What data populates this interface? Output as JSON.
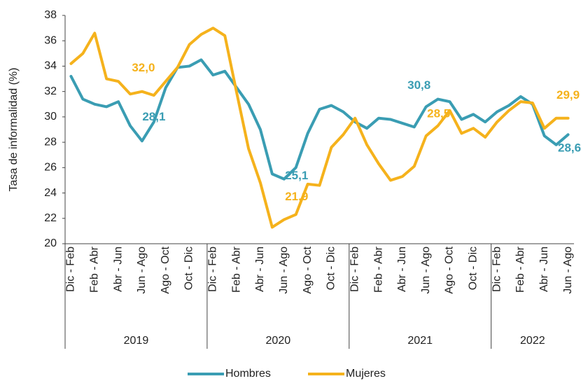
{
  "chart_data": {
    "type": "line",
    "y_label": "Tasa de informalidad (%)",
    "categories": [
      "Dic - Feb",
      null,
      "Feb - Abr",
      null,
      "Abr - Jun",
      null,
      "Jun - Ago",
      null,
      "Ago - Oct",
      null,
      "Oct - Dic",
      null,
      "Dic - Feb",
      null,
      "Feb - Abr",
      null,
      "Abr - Jun",
      null,
      "Jun - Ago",
      null,
      "Ago - Oct",
      null,
      "Oct - Dic",
      null,
      "Dic - Feb",
      null,
      "Feb - Abr",
      null,
      "Abr - Jun",
      null,
      "Jun - Ago",
      null,
      "Ago - Oct",
      null,
      "Oct - Dic",
      null,
      "Dic - Feb",
      null,
      "Feb - Abr",
      null,
      "Abr - Jun",
      null,
      "Jun - Ago"
    ],
    "years": [
      "2019",
      "2020",
      "2021",
      "2022"
    ],
    "series": [
      {
        "name": "Hombres",
        "color": "#3a9db3",
        "values": [
          33.2,
          31.4,
          31.0,
          30.8,
          31.2,
          29.3,
          28.1,
          29.6,
          32.3,
          33.9,
          34.0,
          34.5,
          33.3,
          33.6,
          32.3,
          31.0,
          29.0,
          25.5,
          25.1,
          26.0,
          28.7,
          30.6,
          30.9,
          30.4,
          29.6,
          29.1,
          29.9,
          29.8,
          29.5,
          29.2,
          30.8,
          31.4,
          31.2,
          29.8,
          30.2,
          29.6,
          30.4,
          30.9,
          31.6,
          31.0,
          28.5,
          27.8,
          28.6
        ],
        "value_labels": [
          null,
          null,
          null,
          null,
          null,
          null,
          "28,1",
          null,
          null,
          null,
          null,
          null,
          null,
          null,
          null,
          null,
          null,
          null,
          "25,1",
          null,
          null,
          null,
          null,
          null,
          null,
          null,
          null,
          null,
          null,
          null,
          "30,8",
          null,
          null,
          null,
          null,
          null,
          null,
          null,
          null,
          null,
          null,
          null,
          "28,6"
        ]
      },
      {
        "name": "Mujeres",
        "color": "#f5b21c",
        "values": [
          34.2,
          35.0,
          36.6,
          33.0,
          32.8,
          31.8,
          32.0,
          31.7,
          32.8,
          33.9,
          35.7,
          36.5,
          37.0,
          36.4,
          31.9,
          27.5,
          24.8,
          21.3,
          21.9,
          22.3,
          24.7,
          24.6,
          27.6,
          28.6,
          29.9,
          27.8,
          26.3,
          25.0,
          25.3,
          26.1,
          28.5,
          29.3,
          30.5,
          28.7,
          29.1,
          28.4,
          29.6,
          30.5,
          31.2,
          31.1,
          29.1,
          29.9,
          29.9
        ],
        "value_labels": [
          null,
          null,
          null,
          null,
          null,
          null,
          "32,0",
          null,
          null,
          null,
          null,
          null,
          null,
          null,
          null,
          null,
          null,
          null,
          "21,9",
          null,
          null,
          null,
          null,
          null,
          null,
          null,
          null,
          null,
          null,
          null,
          "28,5",
          null,
          null,
          null,
          null,
          null,
          null,
          null,
          null,
          null,
          null,
          null,
          "29,9"
        ]
      }
    ],
    "ylim": [
      20,
      38
    ],
    "yticks": [
      20,
      22,
      24,
      26,
      28,
      30,
      32,
      34,
      36,
      38
    ],
    "legend": "bottom"
  }
}
